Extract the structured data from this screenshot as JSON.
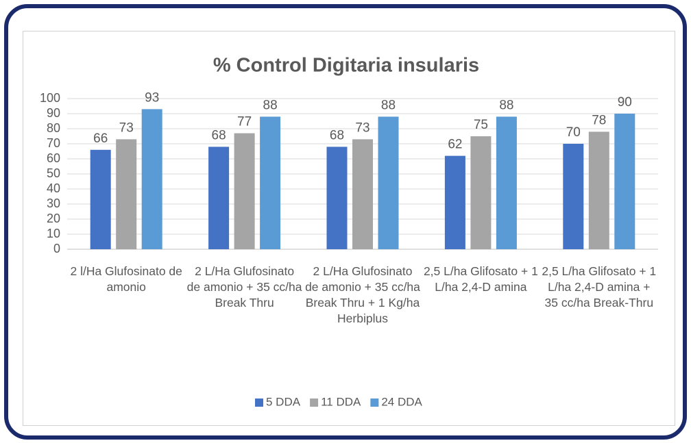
{
  "chart_data": {
    "type": "bar",
    "title": "% Control Digitaria insularis",
    "categories": [
      "2 l/Ha Glufosinato de amonio",
      "2 L/Ha Glufosinato de amonio + 35 cc/ha Break Thru",
      "2 L/Ha Glufosinato de amonio + 35 cc/ha Break Thru + 1 Kg/ha Herbiplus",
      "2,5 L/ha Glifosato + 1 L/ha 2,4-D amina",
      "2,5 L/ha Glifosato + 1 L/ha 2,4-D amina + 35 cc/ha Break-Thru"
    ],
    "series": [
      {
        "name": "5 DDA",
        "color": "#4472c4",
        "values": [
          66,
          68,
          68,
          62,
          70
        ]
      },
      {
        "name": "11 DDA",
        "color": "#a5a5a5",
        "values": [
          73,
          77,
          73,
          75,
          78
        ]
      },
      {
        "name": "24 DDA",
        "color": "#5b9bd5",
        "values": [
          93,
          88,
          88,
          88,
          90
        ]
      }
    ],
    "ylim": [
      0,
      100
    ],
    "yticks": [
      0,
      10,
      20,
      30,
      40,
      50,
      60,
      70,
      80,
      90,
      100
    ],
    "grid": true,
    "legend": "bottom"
  }
}
